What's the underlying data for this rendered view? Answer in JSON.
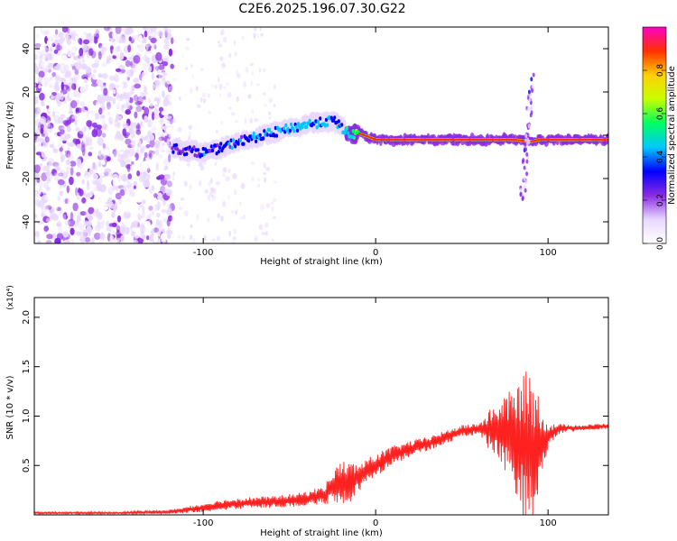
{
  "figure_title": "C2E6.2025.196.07.30.G22",
  "chart_data": [
    {
      "type": "heatmap",
      "title": "",
      "xlabel": "Height of straight line (km)",
      "ylabel": "Frequency (Hz)",
      "xlim": [
        -198,
        135
      ],
      "ylim": [
        -50,
        50
      ],
      "xticks": [
        -100,
        0,
        100
      ],
      "xtick_labels": [
        "-100",
        "0",
        "100"
      ],
      "yticks": [
        -40,
        -20,
        0,
        20,
        40
      ],
      "ytick_labels": [
        "-40",
        "-20",
        "0",
        "20",
        "40"
      ],
      "colorbar": {
        "label": "Normalized spectral amplitude",
        "range": [
          0,
          1
        ],
        "ticks": [
          0,
          0.2,
          0.4,
          0.6,
          0.8
        ],
        "tick_labels": [
          "0.0",
          "0.2",
          "0.4",
          "0.6",
          "0.8"
        ],
        "colormap": [
          "#ffffff",
          "#e8d8ff",
          "#8a2be2",
          "#0000ff",
          "#00c8ff",
          "#00ff60",
          "#c8ff00",
          "#ffd000",
          "#ff3000",
          "#ff00c8"
        ]
      },
      "ridge": {
        "x": [
          -118,
          -110,
          -100,
          -90,
          -80,
          -70,
          -60,
          -50,
          -40,
          -30,
          -25,
          -20,
          -15,
          -10,
          0,
          20,
          40,
          60,
          80,
          90,
          95,
          100,
          120,
          135
        ],
        "y": [
          -6,
          -7,
          -8,
          -6,
          -3,
          -1,
          1,
          3,
          5,
          6,
          7,
          4,
          0,
          1,
          -2,
          -2,
          -2,
          -2,
          -2,
          -3,
          -2,
          -2,
          -2,
          -2
        ],
        "amp": [
          0.35,
          0.4,
          0.45,
          0.45,
          0.45,
          0.5,
          0.55,
          0.55,
          0.55,
          0.55,
          0.5,
          0.55,
          0.7,
          0.75,
          0.9,
          0.9,
          0.9,
          0.9,
          0.9,
          0.85,
          0.9,
          0.92,
          0.92,
          0.92
        ]
      },
      "noise_region_km": [
        -198,
        -118
      ]
    },
    {
      "type": "line",
      "title": "",
      "xlabel": "Height of straight line (km)",
      "ylabel": "SNR (10 * v/v)",
      "y_multiplier": "(x10⁴)",
      "xlim": [
        -198,
        135
      ],
      "ylim": [
        0,
        2.2
      ],
      "xticks": [
        -100,
        0,
        100
      ],
      "xtick_labels": [
        "-100",
        "0",
        "100"
      ],
      "yticks": [
        0.5,
        1.0,
        1.5,
        2.0
      ],
      "ytick_labels": [
        "0.5",
        "1.0",
        "1.5",
        "2.0"
      ],
      "line_color": "#ff2020",
      "series": [
        {
          "x": [
            -198,
            -150,
            -120,
            -105,
            -90,
            -75,
            -60,
            -45,
            -30,
            -25,
            -20,
            -15,
            -10,
            0,
            10,
            20,
            30,
            40,
            50,
            60,
            70,
            75,
            80,
            85,
            90,
            95,
            100,
            105,
            110,
            120,
            135
          ],
          "mean": [
            0.02,
            0.02,
            0.03,
            0.06,
            0.1,
            0.12,
            0.13,
            0.15,
            0.2,
            0.28,
            0.33,
            0.32,
            0.38,
            0.5,
            0.6,
            0.67,
            0.72,
            0.78,
            0.85,
            0.87,
            0.85,
            0.82,
            0.78,
            0.72,
            0.65,
            0.7,
            0.8,
            0.86,
            0.88,
            0.88,
            0.9
          ],
          "spread": [
            0.01,
            0.01,
            0.02,
            0.04,
            0.05,
            0.06,
            0.06,
            0.07,
            0.09,
            0.17,
            0.22,
            0.22,
            0.14,
            0.12,
            0.1,
            0.08,
            0.07,
            0.07,
            0.06,
            0.06,
            0.3,
            0.4,
            0.5,
            0.7,
            0.85,
            0.5,
            0.12,
            0.06,
            0.04,
            0.03,
            0.03
          ]
        }
      ]
    }
  ]
}
